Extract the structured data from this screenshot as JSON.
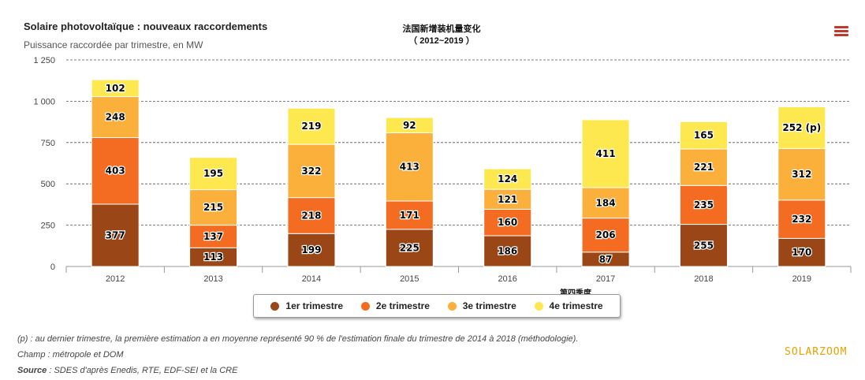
{
  "header": {
    "title": "Solaire photovoltaïque : nouveaux raccordements",
    "subtitle": "Puissance raccordée par trimestre, en MW",
    "cn_title_line1": "法国新增装机量变化",
    "cn_title_line2": "（ 2012~2019 ）",
    "menu_icon": "hamburger-menu-icon"
  },
  "annotation": {
    "quarter_label": "第四季度"
  },
  "chart_data": {
    "type": "bar",
    "stacked": true,
    "title": "Solaire photovoltaïque : nouveaux raccordements",
    "subtitle": "Puissance raccordée par trimestre, en MW",
    "categories": [
      "2012",
      "2013",
      "2014",
      "2015",
      "2016",
      "2017",
      "2018",
      "2019"
    ],
    "ylim": [
      0,
      1250
    ],
    "yticks": [
      0,
      250,
      500,
      750,
      1000,
      1250
    ],
    "ytick_labels": [
      "0",
      "250",
      "500",
      "750",
      "1 000",
      "1 250"
    ],
    "grid": true,
    "legend_position": "bottom-center",
    "series": [
      {
        "name": "1er trimestre",
        "color": "#9a4617",
        "values": [
          377,
          113,
          199,
          225,
          186,
          87,
          255,
          170
        ],
        "labels": [
          "377",
          "113",
          "199",
          "225",
          "186",
          "87",
          "255",
          "170"
        ]
      },
      {
        "name": "2e trimestre",
        "color": "#f36c21",
        "values": [
          403,
          137,
          218,
          171,
          160,
          206,
          235,
          232
        ],
        "labels": [
          "403",
          "137",
          "218",
          "171",
          "160",
          "206",
          "235",
          "232"
        ]
      },
      {
        "name": "3e trimestre",
        "color": "#fbb03b",
        "values": [
          248,
          215,
          322,
          413,
          121,
          184,
          221,
          312
        ],
        "labels": [
          "248",
          "215",
          "322",
          "413",
          "121",
          "184",
          "221",
          "312"
        ]
      },
      {
        "name": "4e trimestre",
        "color": "#fde84f",
        "values": [
          102,
          195,
          219,
          92,
          124,
          411,
          165,
          252
        ],
        "labels": [
          "102",
          "195",
          "219",
          "92",
          "124",
          "411",
          "165",
          "252 (p)"
        ]
      }
    ]
  },
  "legend": {
    "items": [
      {
        "label": "1er trimestre",
        "color": "#9a4617"
      },
      {
        "label": "2e trimestre",
        "color": "#f36c21"
      },
      {
        "label": "3e trimestre",
        "color": "#fbb03b"
      },
      {
        "label": "4e trimestre",
        "color": "#fde84f"
      }
    ]
  },
  "footnotes": {
    "line1": "(p) : au dernier trimestre, la première estimation a en moyenne représenté 90 % de l'estimation finale du trimestre de 2014 à 2018 (méthodologie).",
    "line2": "Champ : métropole et DOM",
    "source_label": "Source",
    "source_text": " : SDES d'après Enedis, RTE, EDF-SEI et la CRE"
  },
  "brand": {
    "watermark": "SOLARZOOM"
  }
}
